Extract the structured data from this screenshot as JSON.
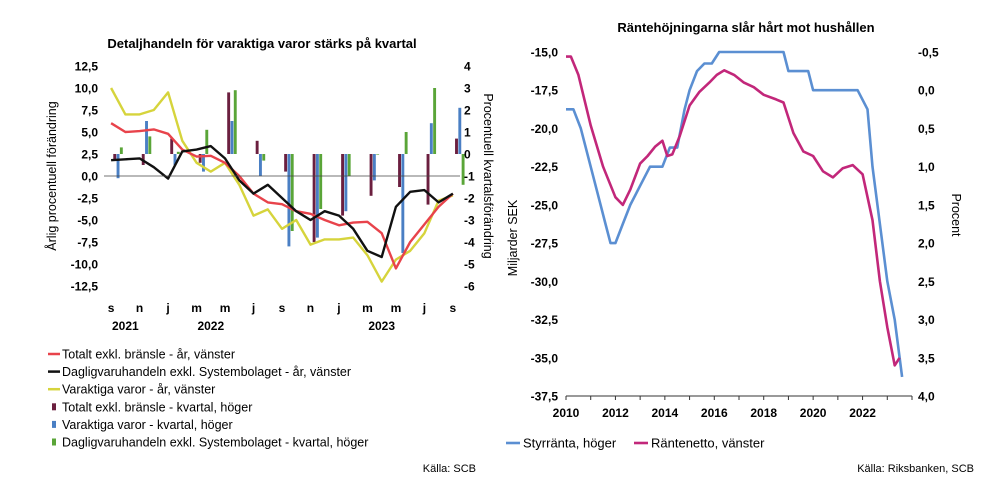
{
  "colors": {
    "total_red": "#e8434b",
    "daily_black": "#111111",
    "durable_yellow": "#d6d43c",
    "total_bar": "#6b1f3f",
    "durable_bar": "#4a7fc4",
    "daily_bar": "#5aa538",
    "policy_blue": "#5b8fd2",
    "netto_magenta": "#c2277a"
  },
  "chart_data": [
    {
      "type": "bar",
      "title": "Detaljhandeln för varaktiga varor stärks på kvartal",
      "ylabel_left": "Årlig procentuell förändring",
      "ylabel_right": "Procentuell kvartalsförändring",
      "ylim_left": [
        -12.5,
        12.5
      ],
      "ylim_right": [
        -6,
        4
      ],
      "yticks_left": [
        "12,5",
        "10,0",
        "7,5",
        "5,0",
        "2,5",
        "0,0",
        "-2,5",
        "-5,0",
        "-7,5",
        "-10,0",
        "-12,5"
      ],
      "yticks_right": [
        "4",
        "3",
        "2",
        "1",
        "0",
        "-1",
        "-2",
        "-3",
        "-4",
        "-5",
        "-6"
      ],
      "month_ticks": [
        "s",
        "n",
        "j",
        "m",
        "m",
        "j",
        "s",
        "n",
        "j",
        "m",
        "m",
        "j",
        "s"
      ],
      "year_labels": [
        {
          "label": "2021",
          "month_index": 1
        },
        {
          "label": "2022",
          "month_index": 7
        },
        {
          "label": "2023",
          "month_index": 19
        }
      ],
      "bar_months": [
        0,
        2,
        4,
        6,
        8,
        10,
        12,
        14,
        16,
        18,
        20,
        22,
        24
      ],
      "bar_series": [
        {
          "name": "Totalt exkl. bränsle - kvartal, höger",
          "values": [
            -0.3,
            -0.5,
            0.7,
            -0.4,
            2.8,
            0.6,
            -0.8,
            -4.0,
            -2.8,
            -1.9,
            -1.5,
            -2.3,
            0.7
          ]
        },
        {
          "name": "Varaktiga varor - kvartal, höger",
          "values": [
            -1.1,
            1.5,
            -0.5,
            -0.8,
            1.5,
            -1.0,
            -4.2,
            -3.8,
            -2.6,
            -1.2,
            -4.5,
            1.4,
            2.1
          ]
        },
        {
          "name": "Dagligvaruhandeln exkl. Systembolaget - kvartal, höger",
          "values": [
            0.3,
            0.8,
            0.1,
            1.1,
            2.9,
            -0.3,
            -3.5,
            -2.5,
            -1.0,
            0.0,
            1.0,
            3.0,
            -1.4
          ]
        }
      ],
      "line_series": [
        {
          "name": "Totalt exkl. bränsle - år, vänster",
          "values": [
            6.0,
            5.0,
            5.1,
            5.3,
            4.8,
            3.0,
            2.2,
            2.3,
            1.5,
            0.0,
            -2.0,
            -3.0,
            -3.2,
            -4.0,
            -4.3,
            -5.0,
            -5.6,
            -5.3,
            -5.2,
            -6.5,
            -10.5,
            -7.5,
            -5.5,
            -3.5,
            -2.0
          ]
        },
        {
          "name": "Dagligvaruhandeln exkl. Systembolaget - år, vänster",
          "values": [
            1.8,
            1.9,
            2.0,
            1.0,
            -0.3,
            2.8,
            3.0,
            3.4,
            2.0,
            -0.5,
            -2.0,
            -1.0,
            -2.5,
            -4.0,
            -5.0,
            -4.0,
            -4.5,
            -6.0,
            -8.5,
            -9.2,
            -3.5,
            -1.8,
            -1.6,
            -3.0,
            -2.0
          ]
        },
        {
          "name": "Varaktiga varor - år, vänster",
          "values": [
            10.0,
            7.0,
            7.0,
            7.5,
            9.5,
            4.0,
            1.5,
            0.5,
            1.5,
            -1.0,
            -4.5,
            -3.8,
            -6.0,
            -5.0,
            -7.8,
            -7.2,
            -7.2,
            -7.0,
            -9.0,
            -12.0,
            -9.5,
            -8.5,
            -6.5,
            -2.8,
            -2.2
          ]
        }
      ]
    },
    {
      "type": "line",
      "title": "Räntehöjningarna slår hårt mot hushållen",
      "ylabel_left": "Miljarder SEK",
      "ylabel_right": "Procent",
      "ylim_left": [
        -37.5,
        -15.0
      ],
      "ylim_right": [
        4.0,
        -0.5
      ],
      "xlim": [
        2010,
        2024
      ],
      "yticks_left": [
        "-15,0",
        "-17,5",
        "-20,0",
        "-22,5",
        "-25,0",
        "-27,5",
        "-30,0",
        "-32,5",
        "-35,0",
        "-37,5"
      ],
      "yticks_right": [
        "-0,5",
        "0,0",
        "0,5",
        "1,0",
        "1,5",
        "2,0",
        "2,5",
        "3,0",
        "3,5",
        "4,0"
      ],
      "xticks": [
        "2010",
        "2012",
        "2014",
        "2016",
        "2018",
        "2020",
        "2022"
      ],
      "series": [
        {
          "name": "Styrränta, höger",
          "axis": "right",
          "x": [
            2010.0,
            2010.3,
            2010.6,
            2011.0,
            2011.4,
            2011.6,
            2011.8,
            2012.0,
            2012.3,
            2012.6,
            2013.0,
            2013.4,
            2013.6,
            2013.9,
            2014.2,
            2014.5,
            2014.8,
            2015.0,
            2015.3,
            2015.6,
            2015.9,
            2016.2,
            2016.5,
            2017.0,
            2018.0,
            2018.8,
            2019.0,
            2019.3,
            2019.8,
            2020.0,
            2020.5,
            2021.0,
            2021.8,
            2022.2,
            2022.4,
            2022.7,
            2023.0,
            2023.3,
            2023.6
          ],
          "y": [
            0.25,
            0.25,
            0.5,
            1.0,
            1.5,
            1.75,
            2.0,
            2.0,
            1.75,
            1.5,
            1.25,
            1.0,
            1.0,
            1.0,
            0.75,
            0.75,
            0.25,
            0.0,
            -0.25,
            -0.35,
            -0.35,
            -0.5,
            -0.5,
            -0.5,
            -0.5,
            -0.5,
            -0.25,
            -0.25,
            -0.25,
            0.0,
            0.0,
            0.0,
            0.0,
            0.25,
            1.0,
            1.75,
            2.5,
            3.0,
            3.75
          ]
        },
        {
          "name": "Räntenetto, vänster",
          "axis": "left",
          "x": [
            2010.0,
            2010.2,
            2010.5,
            2011.0,
            2011.5,
            2012.0,
            2012.3,
            2012.6,
            2013.0,
            2013.3,
            2013.6,
            2013.9,
            2014.1,
            2014.3,
            2014.6,
            2015.0,
            2015.4,
            2015.8,
            2016.1,
            2016.4,
            2016.8,
            2017.2,
            2017.6,
            2018.0,
            2018.5,
            2018.8,
            2019.2,
            2019.6,
            2020.0,
            2020.4,
            2020.8,
            2021.2,
            2021.6,
            2022.0,
            2022.4,
            2022.7,
            2023.0,
            2023.3,
            2023.5
          ],
          "y": [
            -15.3,
            -15.3,
            -16.5,
            -19.8,
            -22.5,
            -24.5,
            -25.0,
            -24.0,
            -22.3,
            -21.8,
            -21.2,
            -20.8,
            -21.8,
            -21.7,
            -20.5,
            -18.5,
            -17.6,
            -17.0,
            -16.5,
            -16.2,
            -16.5,
            -17.0,
            -17.3,
            -17.8,
            -18.1,
            -18.3,
            -20.3,
            -21.5,
            -21.8,
            -22.8,
            -23.2,
            -22.6,
            -22.4,
            -23.0,
            -26.0,
            -30.0,
            -33.0,
            -35.5,
            -35.0
          ]
        }
      ]
    }
  ],
  "legend_left": [
    {
      "label": "Totalt exkl. bränsle - år, vänster",
      "kind": "line",
      "color_key": "total_red"
    },
    {
      "label": "Dagligvaruhandeln exkl. Systembolaget - år, vänster",
      "kind": "line",
      "color_key": "daily_black"
    },
    {
      "label": "Varaktiga varor - år, vänster",
      "kind": "line",
      "color_key": "durable_yellow"
    },
    {
      "label": "Totalt exkl. bränsle - kvartal, höger",
      "kind": "bar",
      "color_key": "total_bar"
    },
    {
      "label": "Varaktiga varor - kvartal, höger",
      "kind": "bar",
      "color_key": "durable_bar"
    },
    {
      "label": "Dagligvaruhandeln exkl. Systembolaget - kvartal, höger",
      "kind": "bar",
      "color_key": "daily_bar"
    }
  ],
  "legend_right": [
    {
      "label": "Styrränta, höger",
      "color_key": "policy_blue"
    },
    {
      "label": "Räntenetto, vänster",
      "color_key": "netto_magenta"
    }
  ],
  "source_left": "Källa: SCB",
  "source_right": "Källa: Riksbanken, SCB"
}
